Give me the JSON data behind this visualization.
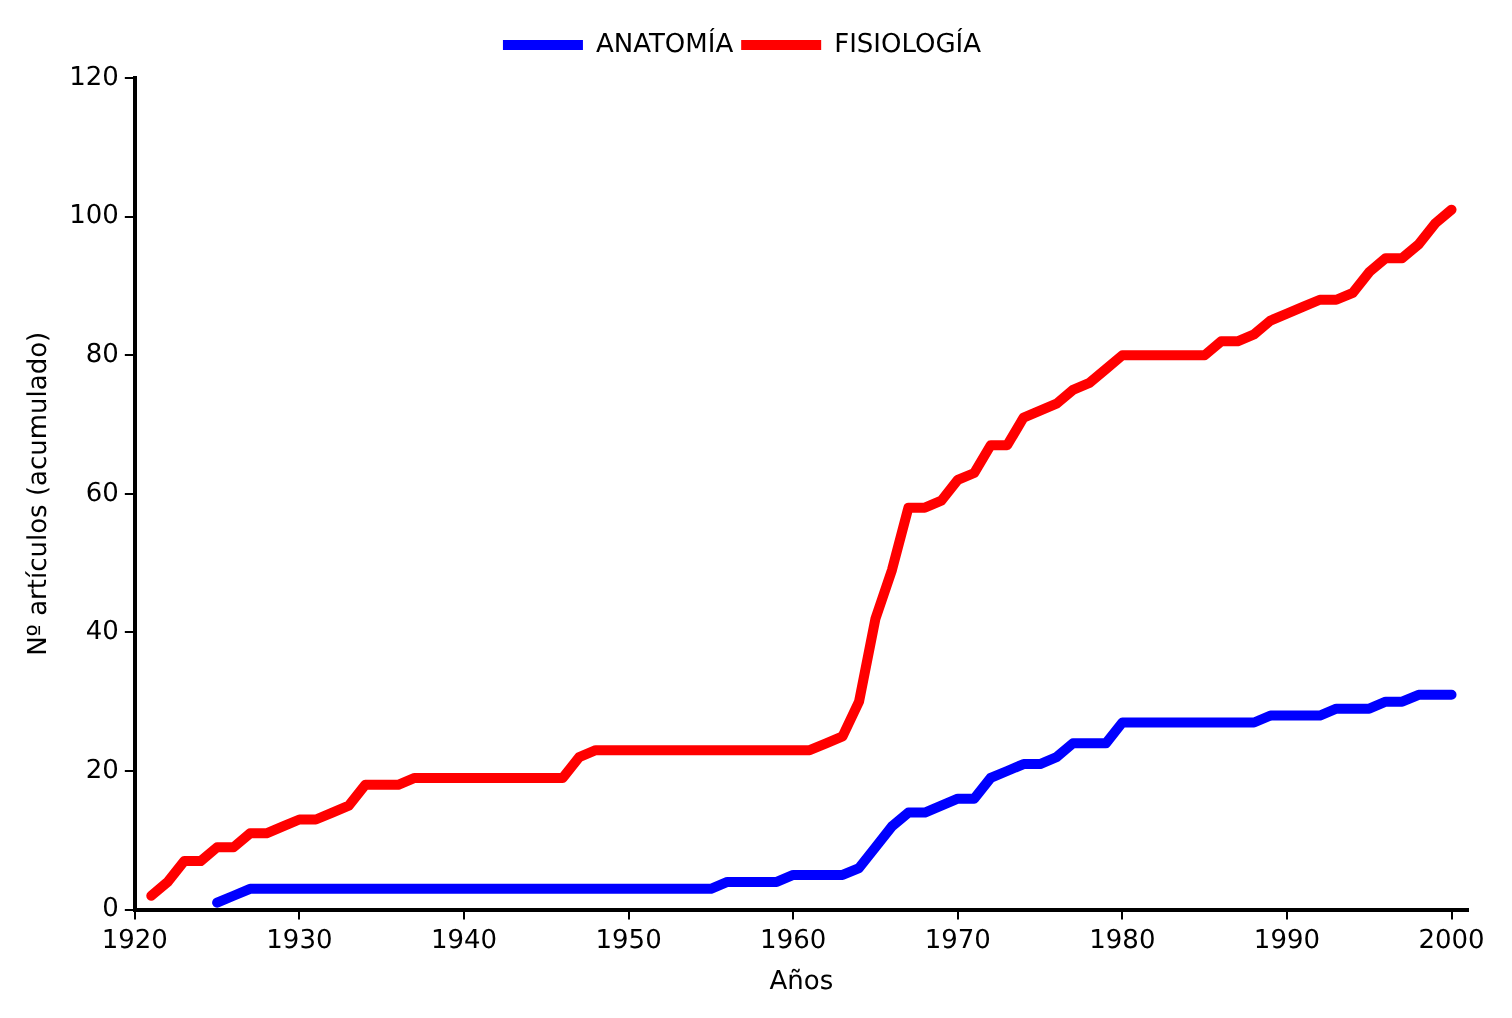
{
  "chart_data": {
    "type": "line",
    "xlabel": "Años",
    "ylabel": "Nº artículos (acumulado)",
    "x": [
      1921,
      1922,
      1923,
      1924,
      1925,
      1926,
      1927,
      1928,
      1929,
      1930,
      1931,
      1932,
      1933,
      1934,
      1935,
      1936,
      1937,
      1938,
      1939,
      1940,
      1941,
      1942,
      1943,
      1944,
      1945,
      1946,
      1947,
      1948,
      1949,
      1950,
      1951,
      1952,
      1953,
      1954,
      1955,
      1956,
      1957,
      1958,
      1959,
      1960,
      1961,
      1962,
      1963,
      1964,
      1965,
      1966,
      1967,
      1968,
      1969,
      1970,
      1971,
      1972,
      1973,
      1974,
      1975,
      1976,
      1977,
      1978,
      1979,
      1980,
      1981,
      1982,
      1983,
      1984,
      1985,
      1986,
      1987,
      1988,
      1989,
      1990,
      1991,
      1992,
      1993,
      1994,
      1995,
      1996,
      1997,
      1998,
      1999,
      2000
    ],
    "series": [
      {
        "name": "ANATOMÍA",
        "color": "#0000ff",
        "values": [
          null,
          null,
          null,
          null,
          1,
          2,
          3,
          3,
          3,
          3,
          3,
          3,
          3,
          3,
          3,
          3,
          3,
          3,
          3,
          3,
          3,
          3,
          3,
          3,
          3,
          3,
          3,
          3,
          3,
          3,
          3,
          3,
          3,
          3,
          3,
          4,
          4,
          4,
          4,
          5,
          5,
          5,
          5,
          6,
          9,
          12,
          14,
          14,
          15,
          16,
          16,
          19,
          20,
          21,
          21,
          22,
          24,
          24,
          24,
          27,
          27,
          27,
          27,
          27,
          27,
          27,
          27,
          27,
          28,
          28,
          28,
          28,
          29,
          29,
          29,
          30,
          30,
          31,
          31,
          31
        ]
      },
      {
        "name": "FISIOLOGÍA",
        "color": "#ff0000",
        "values": [
          2,
          4,
          7,
          7,
          9,
          9,
          11,
          11,
          12,
          13,
          13,
          14,
          15,
          18,
          18,
          18,
          19,
          19,
          19,
          19,
          19,
          19,
          19,
          19,
          19,
          19,
          22,
          23,
          23,
          23,
          23,
          23,
          23,
          23,
          23,
          23,
          23,
          23,
          23,
          23,
          23,
          24,
          25,
          30,
          42,
          49,
          58,
          58,
          59,
          62,
          63,
          67,
          67,
          71,
          72,
          73,
          75,
          76,
          78,
          80,
          80,
          80,
          80,
          80,
          80,
          82,
          82,
          83,
          85,
          86,
          87,
          88,
          88,
          89,
          92,
          94,
          94,
          96,
          99,
          101
        ]
      }
    ],
    "xlim": [
      1920,
      2001
    ],
    "xticks": [
      1920,
      1930,
      1940,
      1950,
      1960,
      1970,
      1980,
      1990,
      2000
    ],
    "ylim": [
      0,
      120
    ],
    "yticks": [
      0,
      20,
      40,
      60,
      80,
      100,
      120
    ],
    "grid": false,
    "legend": "top",
    "marker": "none",
    "line_style": "solid"
  }
}
